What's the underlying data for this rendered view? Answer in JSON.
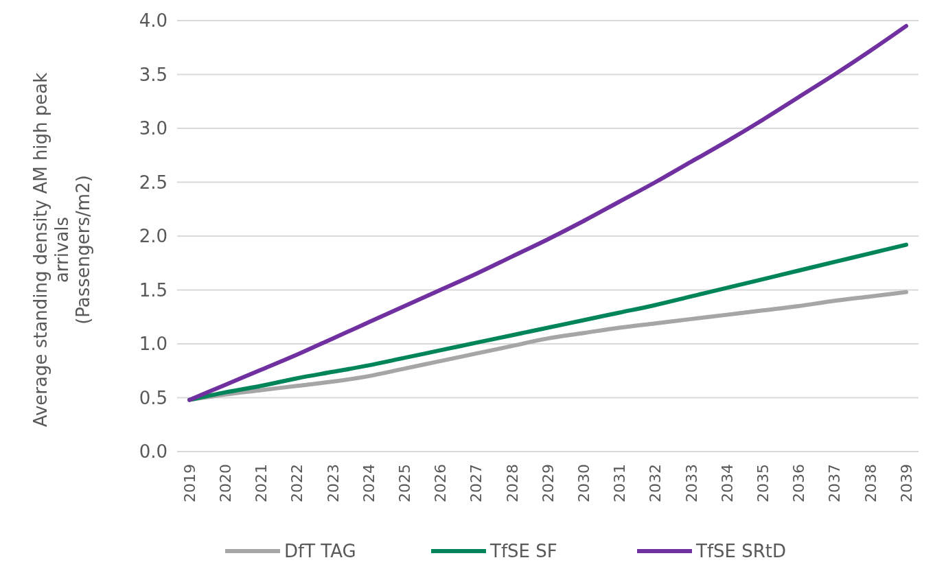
{
  "chart_data": {
    "type": "line",
    "ylabel": "Average standing density AM high peak\narrivals\n(Passengers/m2)",
    "categories": [
      "2019",
      "2020",
      "2021",
      "2022",
      "2023",
      "2024",
      "2025",
      "2026",
      "2027",
      "2028",
      "2029",
      "2030",
      "2031",
      "2032",
      "2033",
      "2034",
      "2035",
      "2036",
      "2037",
      "2038",
      "2039"
    ],
    "series": [
      {
        "name": "DfT TAG",
        "color": "#a6a6a6",
        "values": [
          0.48,
          0.53,
          0.57,
          0.61,
          0.65,
          0.7,
          0.77,
          0.84,
          0.91,
          0.98,
          1.05,
          1.1,
          1.15,
          1.19,
          1.23,
          1.27,
          1.31,
          1.35,
          1.4,
          1.44,
          1.48
        ]
      },
      {
        "name": "TfSE SF",
        "color": "#00845a",
        "values": [
          0.48,
          0.55,
          0.61,
          0.68,
          0.74,
          0.8,
          0.87,
          0.94,
          1.01,
          1.08,
          1.15,
          1.22,
          1.29,
          1.36,
          1.44,
          1.52,
          1.6,
          1.68,
          1.76,
          1.84,
          1.92
        ]
      },
      {
        "name": "TfSE SRtD",
        "color": "#7030a0",
        "values": [
          0.48,
          0.62,
          0.76,
          0.9,
          1.05,
          1.2,
          1.35,
          1.5,
          1.65,
          1.81,
          1.97,
          2.14,
          2.32,
          2.5,
          2.69,
          2.88,
          3.08,
          3.29,
          3.5,
          3.72,
          3.95
        ]
      }
    ],
    "ylim": [
      0,
      4
    ],
    "yticks": [
      {
        "value": 0,
        "label": "0.0"
      },
      0.5,
      {
        "value": 1,
        "label": "1.0"
      },
      1.5,
      {
        "value": 2,
        "label": "2.0"
      },
      2.5,
      {
        "value": 3,
        "label": "3.0"
      },
      3.5,
      {
        "value": 4,
        "label": "4.0"
      }
    ],
    "grid": "y",
    "legend": "bottom",
    "marker": "none",
    "line_style": "solid"
  }
}
